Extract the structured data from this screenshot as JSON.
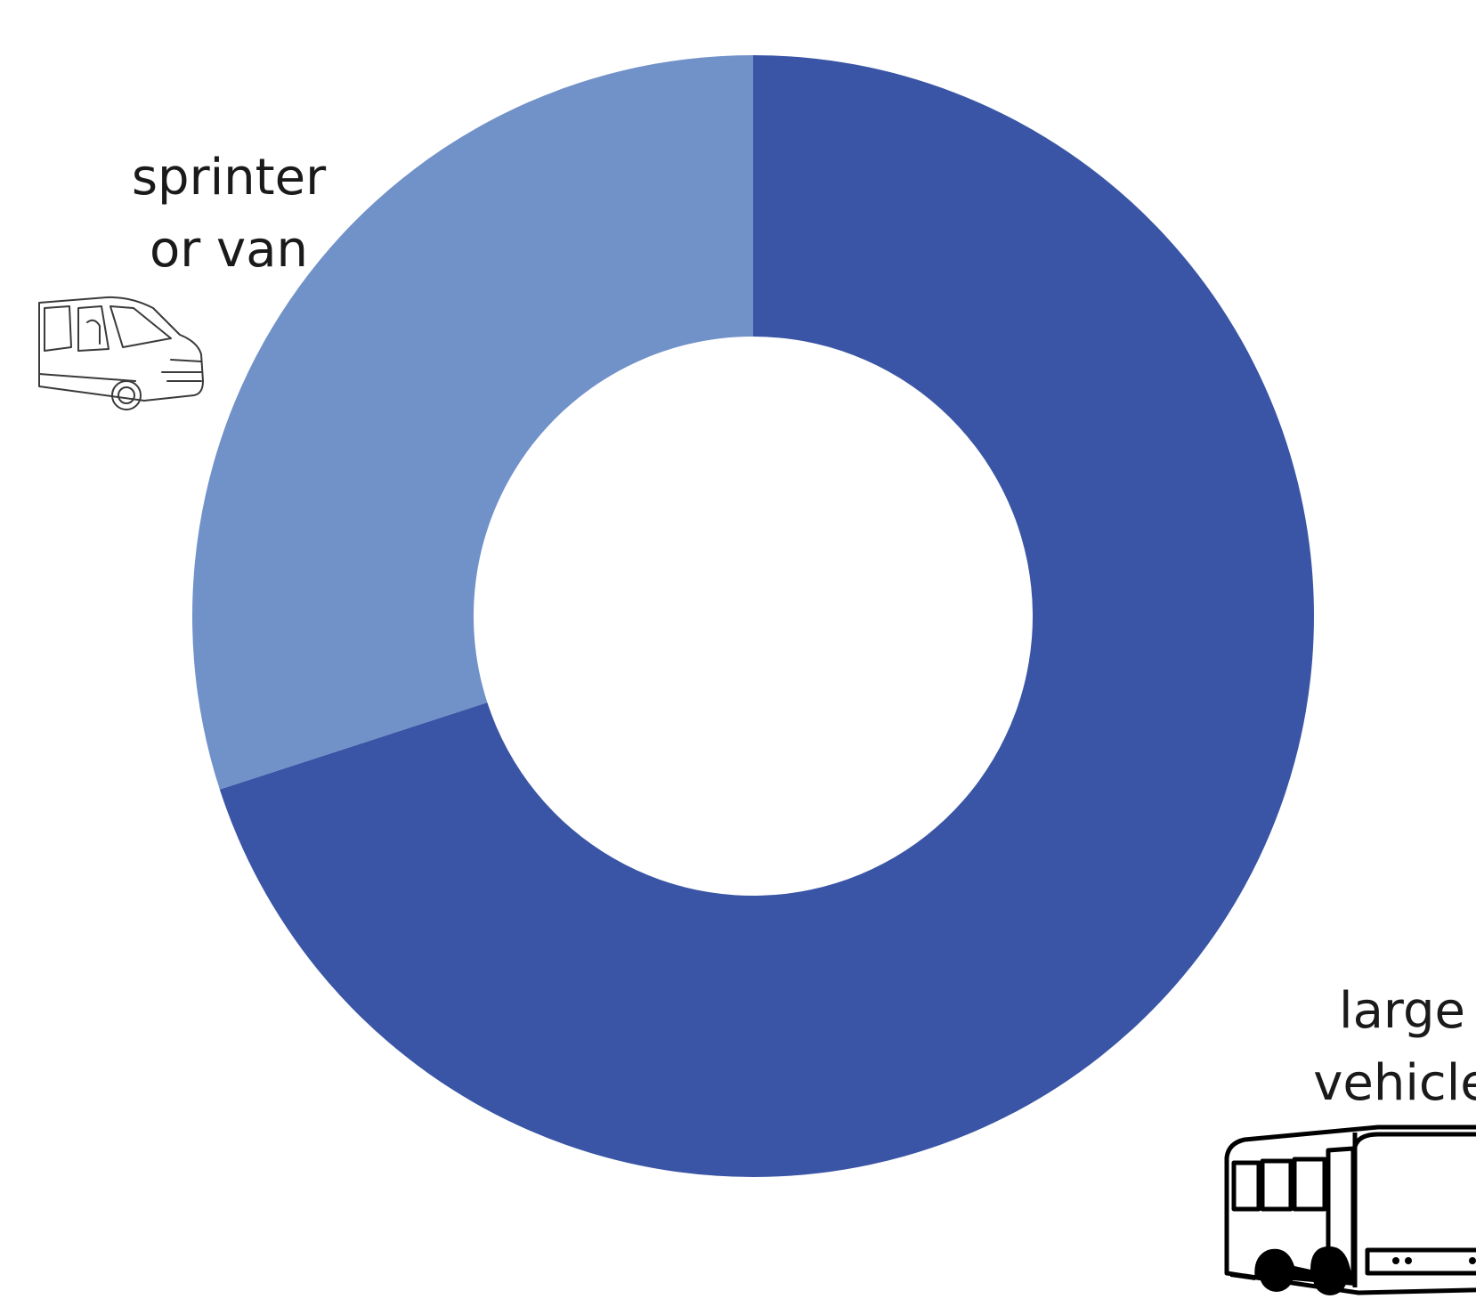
{
  "chart_data": {
    "type": "pie",
    "donut": true,
    "title": "",
    "categories": [
      "large vehicle",
      "sprinter or van"
    ],
    "values": [
      70,
      30
    ],
    "unit": "percent",
    "start_angle_deg": 0,
    "direction": "clockwise",
    "colors": [
      "#3A55A5",
      "#7191C9"
    ],
    "legend": "none",
    "icons": [
      "bus-icon",
      "van-icon"
    ]
  }
}
